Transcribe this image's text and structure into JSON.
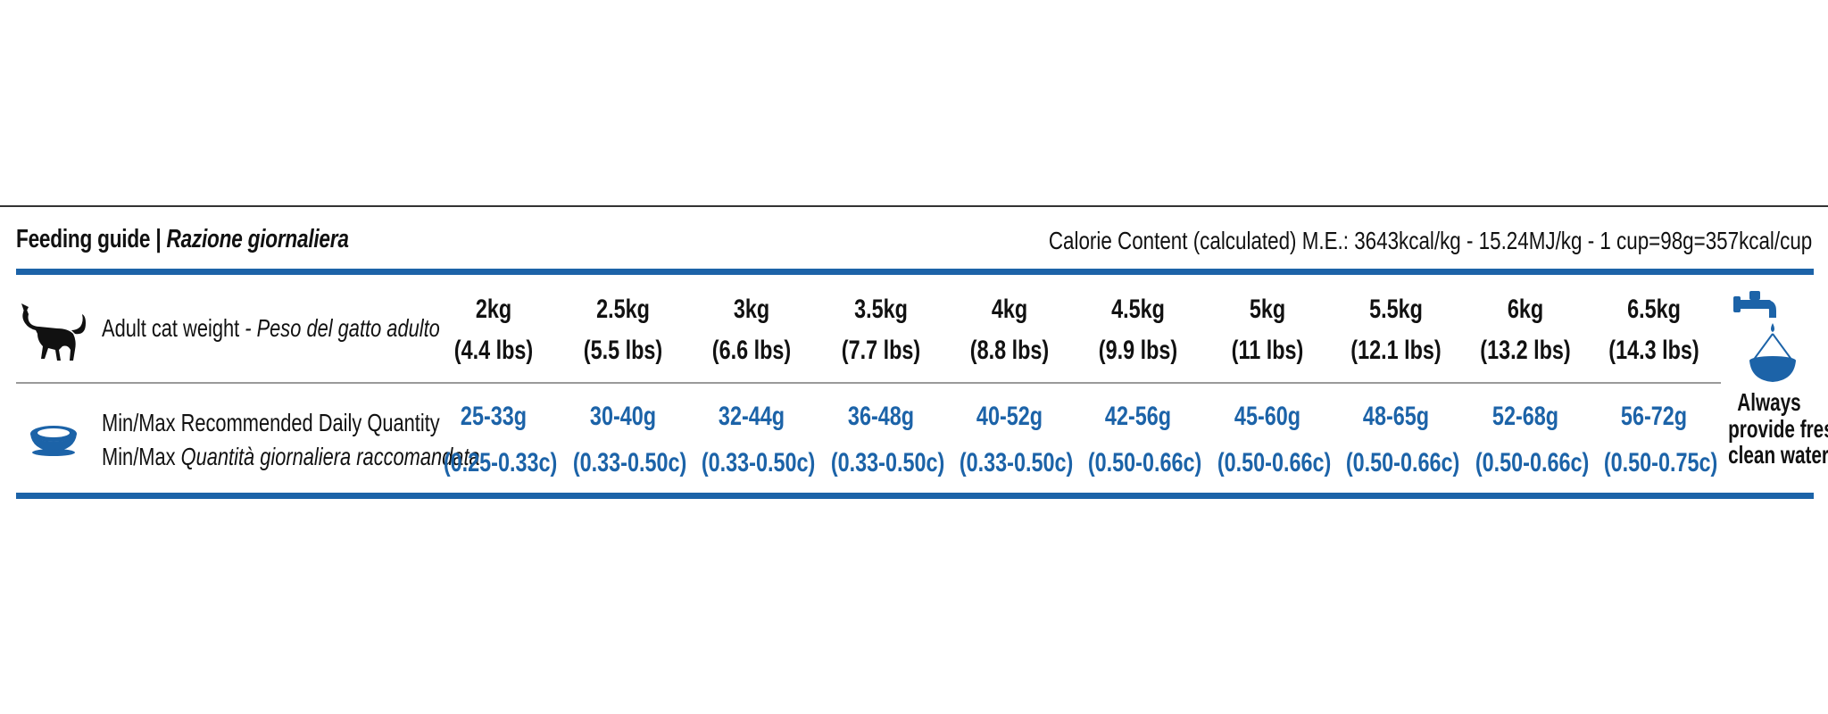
{
  "header": {
    "title_bold": "Feeding guide | ",
    "title_italic": "Razione giornaliera",
    "calorie_text": "Calorie Content (calculated) M.E.: 3643kcal/kg - 15.24MJ/kg - 1 cup=98g=357kcal/cup"
  },
  "colors": {
    "accent_blue": "#1c63a8",
    "text": "#111111"
  },
  "icons": {
    "cat": "cat-silhouette-icon",
    "bowl": "food-bowl-icon",
    "water": "water-tap-bowl-icon"
  },
  "rows": {
    "weight_label_en": "Adult cat weight",
    "weight_label_sep": " - ",
    "weight_label_it": "Peso del gatto adulto",
    "qty_label_en": "Min/Max Recommended Daily Quantity",
    "qty_label_it_prefix": "Min/Max ",
    "qty_label_it": "Quantità giornaliera raccomandata"
  },
  "columns": [
    {
      "weight": "2kg",
      "weight_lbs": "(4.4 lbs)",
      "qty": "25-33g",
      "qty_cups": "(0.25-0.33c)"
    },
    {
      "weight": "2.5kg",
      "weight_lbs": "(5.5 lbs)",
      "qty": "30-40g",
      "qty_cups": "(0.33-0.50c)"
    },
    {
      "weight": "3kg",
      "weight_lbs": "(6.6 lbs)",
      "qty": "32-44g",
      "qty_cups": "(0.33-0.50c)"
    },
    {
      "weight": "3.5kg",
      "weight_lbs": "(7.7 lbs)",
      "qty": "36-48g",
      "qty_cups": "(0.33-0.50c)"
    },
    {
      "weight": "4kg",
      "weight_lbs": "(8.8 lbs)",
      "qty": "40-52g",
      "qty_cups": "(0.33-0.50c)"
    },
    {
      "weight": "4.5kg",
      "weight_lbs": "(9.9 lbs)",
      "qty": "42-56g",
      "qty_cups": "(0.50-0.66c)"
    },
    {
      "weight": "5kg",
      "weight_lbs": "(11 lbs)",
      "qty": "45-60g",
      "qty_cups": "(0.50-0.66c)"
    },
    {
      "weight": "5.5kg",
      "weight_lbs": "(12.1 lbs)",
      "qty": "48-65g",
      "qty_cups": "(0.50-0.66c)"
    },
    {
      "weight": "6kg",
      "weight_lbs": "(13.2 lbs)",
      "qty": "52-68g",
      "qty_cups": "(0.50-0.66c)"
    },
    {
      "weight": "6.5kg",
      "weight_lbs": "(14.3 lbs)",
      "qty": "56-72g",
      "qty_cups": "(0.50-0.75c)"
    }
  ],
  "water": {
    "line1": "Always",
    "line2": "provide fresh",
    "line3": "clean water"
  }
}
